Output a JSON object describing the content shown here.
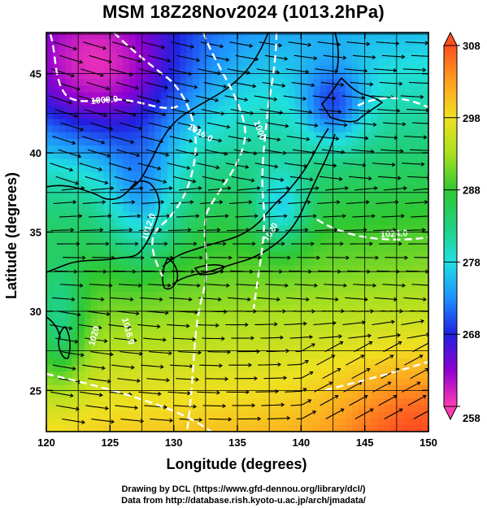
{
  "title": "MSM 18Z28Nov2024 (1013.2hPa)",
  "chart_data": {
    "type": "heatmap",
    "xlabel": "Longitude (degrees)",
    "ylabel": "Latitude  (degrees)",
    "xlim": [
      120,
      150
    ],
    "ylim": [
      22.4,
      47.6
    ],
    "xticks": [
      "120",
      "125",
      "130",
      "135",
      "140",
      "145",
      "150"
    ],
    "yticks": [
      "25",
      "30",
      "35",
      "40",
      "45"
    ],
    "colorbar": {
      "min": 258,
      "max": 308,
      "ticks": [
        "308",
        "298",
        "288",
        "278",
        "268",
        "258"
      ]
    },
    "contour_labels": [
      "1008.0",
      "1016.0",
      "1000",
      "1012.0",
      "1020",
      "1024.0",
      "1016.0",
      "1020"
    ],
    "grid": true
  },
  "credits": {
    "line1": "Drawing by DCL (https://www.gfd-dennou.org/library/dcl/)",
    "line2": "Data from http://database.rish.kyoto-u.ac.jp/arch/jmadata/"
  }
}
